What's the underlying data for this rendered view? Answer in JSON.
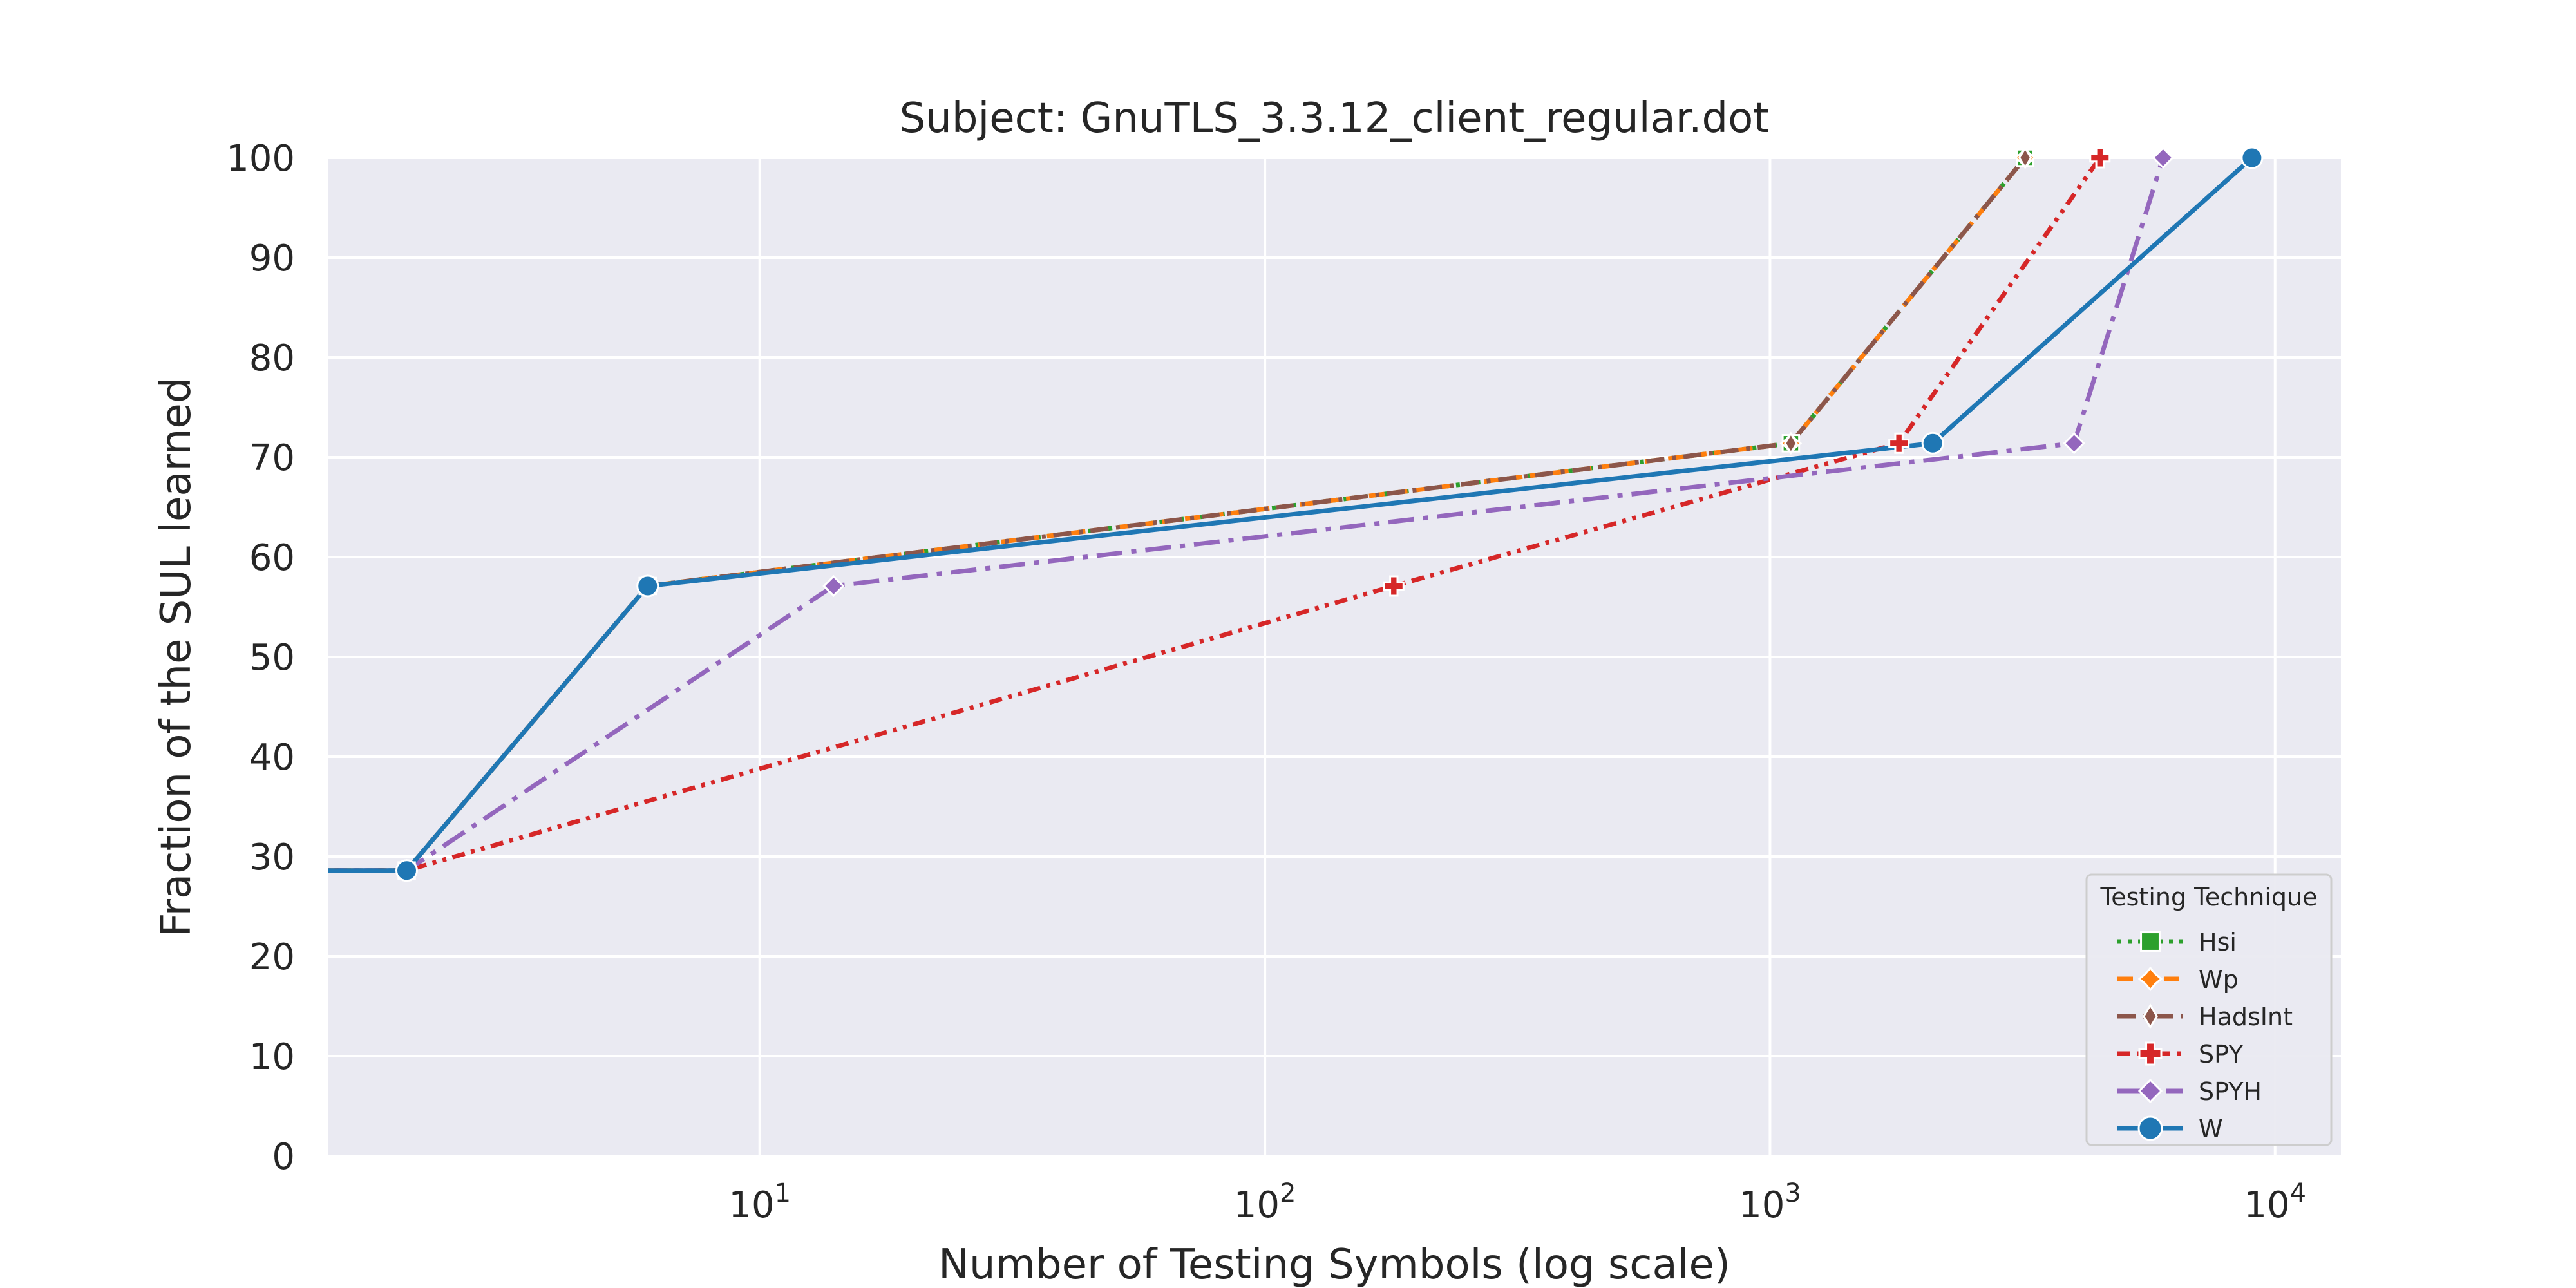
{
  "chart_data": {
    "type": "line",
    "title": "Subject: GnuTLS_3.3.12_client_regular.dot",
    "xlabel": "Number of Testing Symbols (log scale)",
    "ylabel": "Fraction of the SUL learned",
    "x_scale": "log",
    "xlim": [
      1.4,
      13500
    ],
    "ylim": [
      0,
      100
    ],
    "x_ticks": [
      {
        "value": 10,
        "base": "10",
        "exp": "1"
      },
      {
        "value": 100,
        "base": "10",
        "exp": "2"
      },
      {
        "value": 1000,
        "base": "10",
        "exp": "3"
      },
      {
        "value": 10000,
        "base": "10",
        "exp": "4"
      }
    ],
    "y_ticks": [
      0,
      10,
      20,
      30,
      40,
      50,
      60,
      70,
      80,
      90,
      100
    ],
    "grid": true,
    "background": "#eaeaf2",
    "legend": {
      "title": "Testing Technique",
      "placement": "lower-right"
    },
    "series": [
      {
        "name": "Hsi",
        "color": "#2ca02c",
        "dash": "dotted",
        "marker": "square",
        "x": [
          1.0,
          2,
          6,
          1100,
          3200
        ],
        "y": [
          28.6,
          28.6,
          57.1,
          71.4,
          100
        ]
      },
      {
        "name": "Wp",
        "color": "#ff7f0e",
        "dash": "dashed",
        "marker": "diamond-x",
        "x": [
          1.0,
          2,
          6,
          1100,
          3200
        ],
        "y": [
          28.6,
          28.6,
          57.1,
          71.4,
          100
        ]
      },
      {
        "name": "HadsInt",
        "color": "#8c564b",
        "dash": "dashdot",
        "marker": "thin-diamond",
        "x": [
          1.0,
          2,
          6,
          1100,
          3200
        ],
        "y": [
          28.6,
          28.6,
          57.1,
          71.4,
          100
        ]
      },
      {
        "name": "SPY",
        "color": "#d62728",
        "dash": "dashdotdot",
        "marker": "plus",
        "x": [
          1.0,
          2,
          180,
          1800,
          4500
        ],
        "y": [
          28.6,
          28.6,
          57.1,
          71.4,
          100
        ]
      },
      {
        "name": "SPYH",
        "color": "#9467bd",
        "dash": "dashdot-long",
        "marker": "diamond",
        "x": [
          1.0,
          2,
          14,
          4000,
          6000
        ],
        "y": [
          28.6,
          28.6,
          57.1,
          71.4,
          100
        ]
      },
      {
        "name": "W",
        "color": "#1f77b4",
        "dash": "solid",
        "marker": "circle",
        "x": [
          1.0,
          2,
          6,
          2100,
          9000
        ],
        "y": [
          28.6,
          28.6,
          57.1,
          71.4,
          100
        ]
      }
    ]
  }
}
